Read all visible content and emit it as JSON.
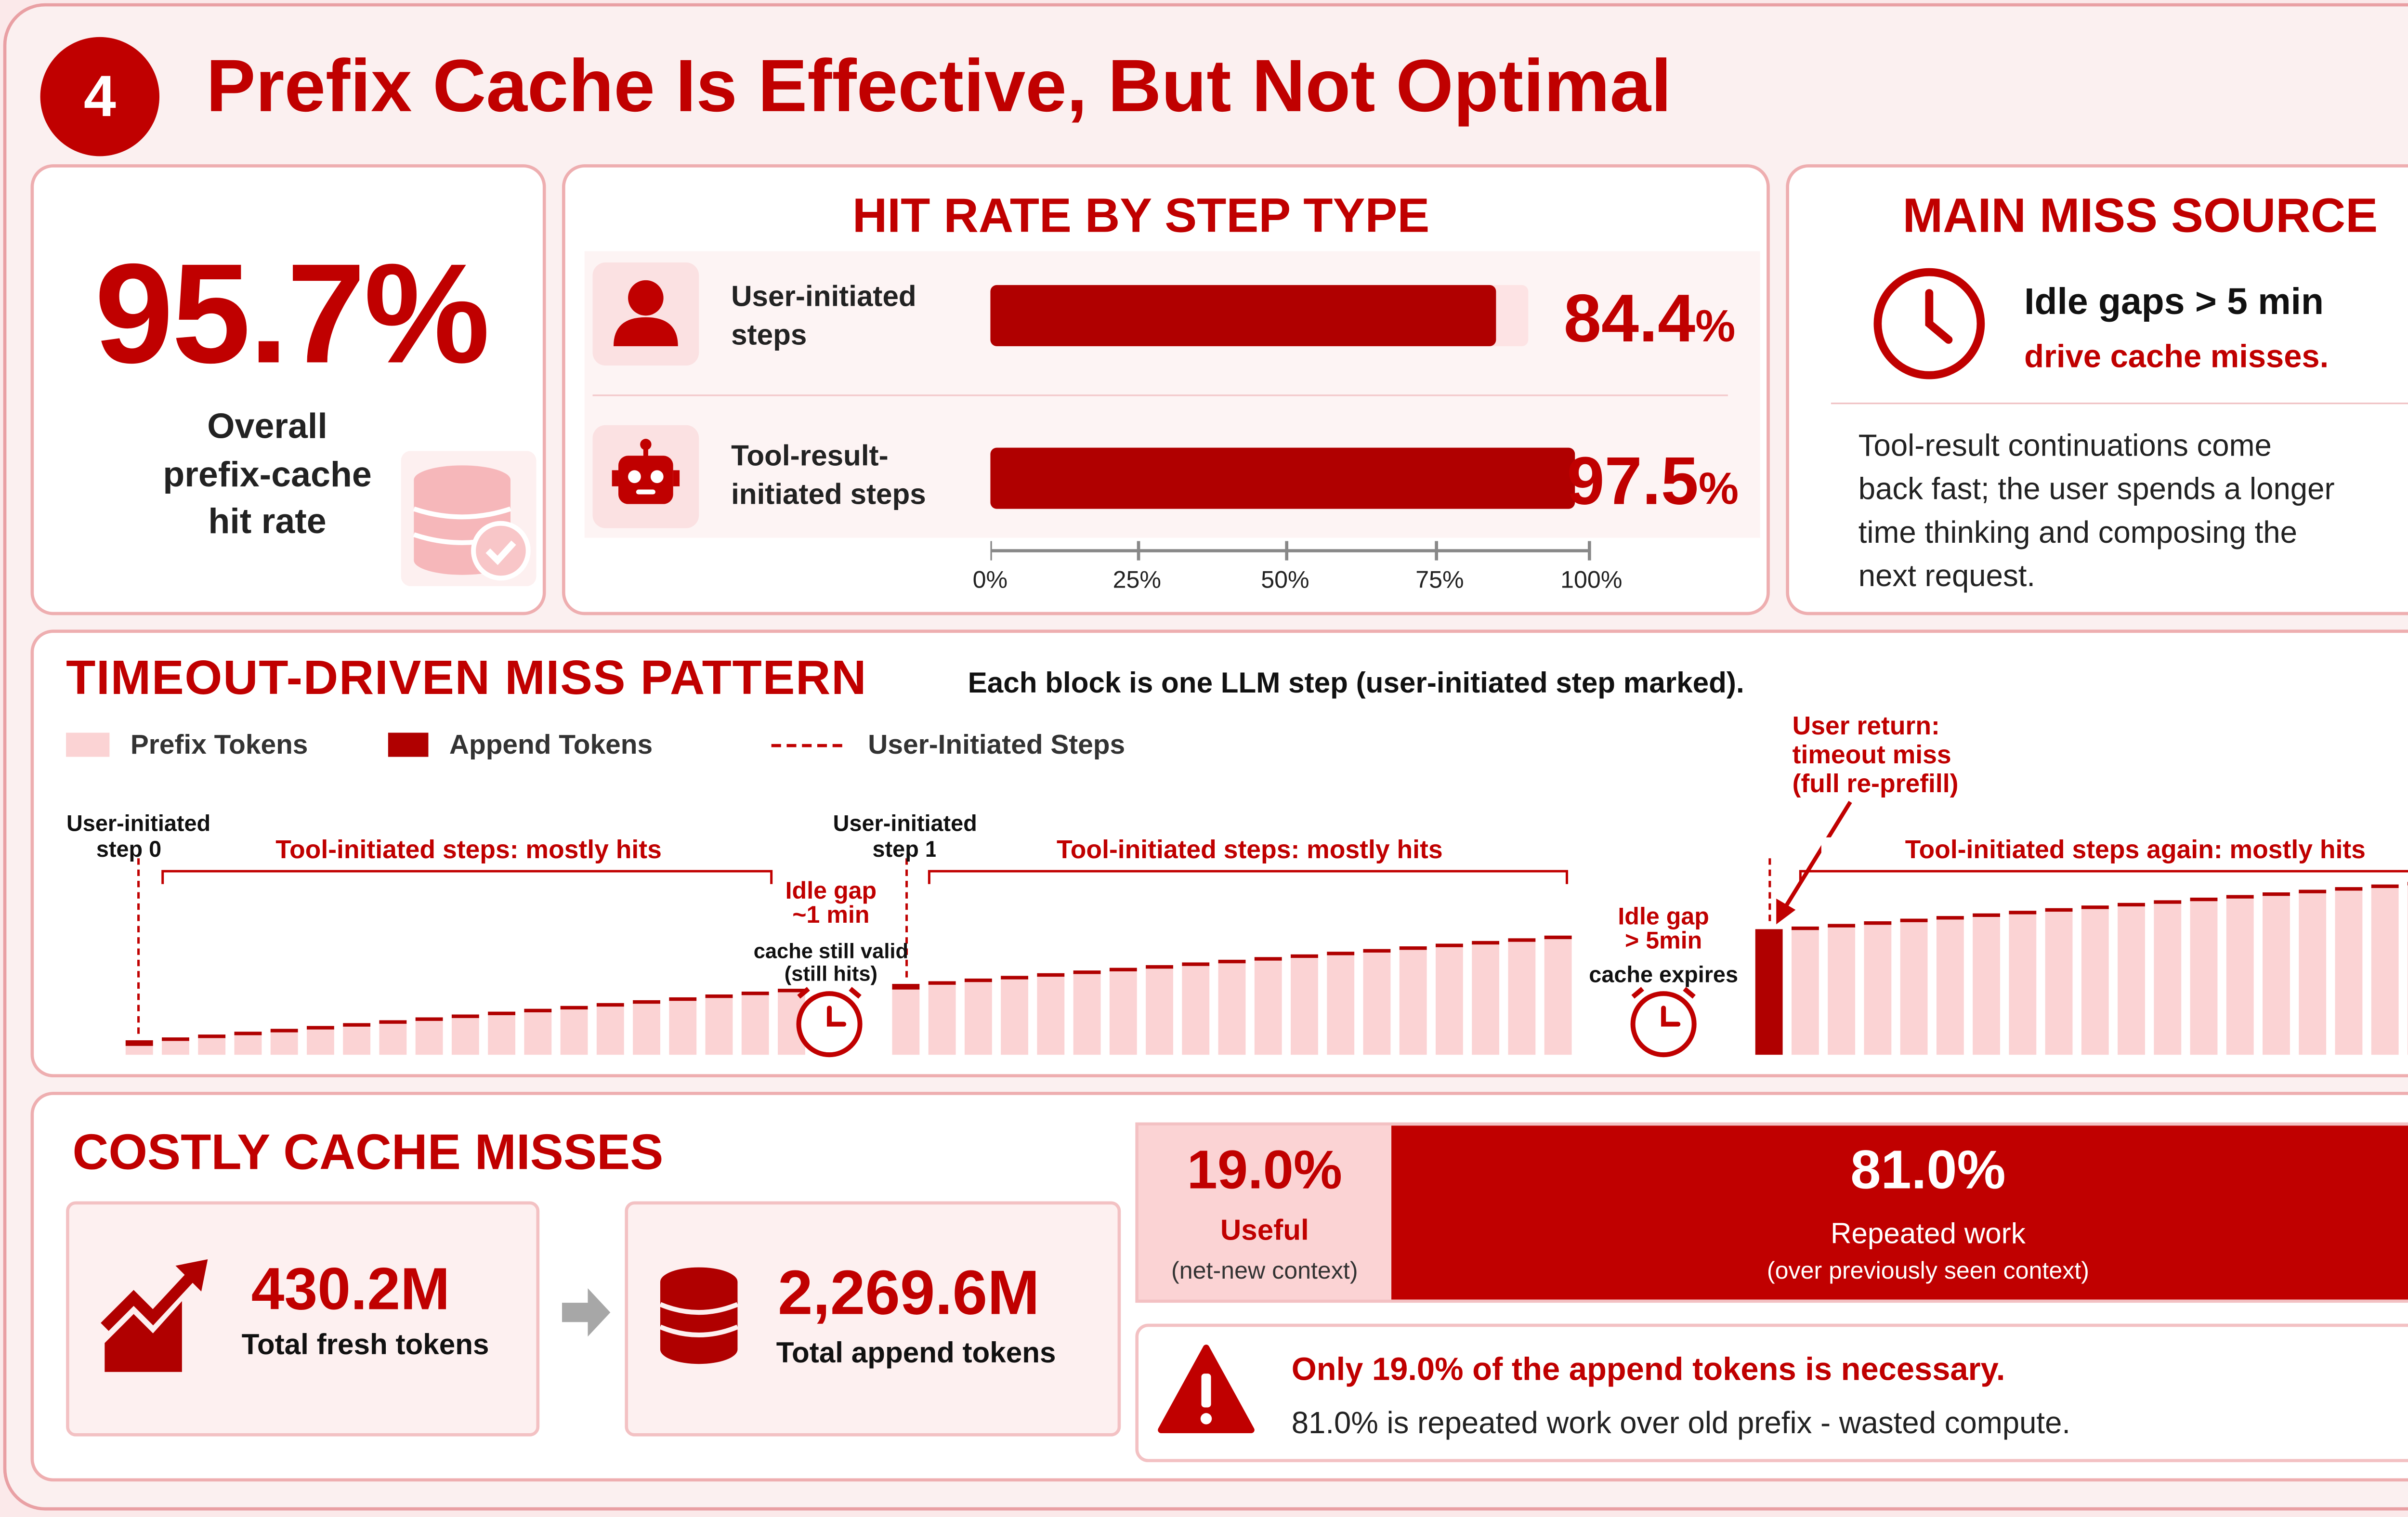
{
  "header": {
    "number": "4",
    "title": "Prefix Cache Is Effective, But Not Optimal"
  },
  "overall": {
    "value": "95.7%",
    "label_lines": [
      "Overall",
      "prefix-cache",
      "hit rate"
    ]
  },
  "hit_rate": {
    "title": "HIT RATE BY STEP TYPE",
    "rows": [
      {
        "label_lines": [
          "User-initiated",
          "steps"
        ],
        "value_num": "84.4",
        "value_pct": "%",
        "value": 84.4
      },
      {
        "label_lines": [
          "Tool-result-",
          "initiated steps"
        ],
        "value_num": "97.5",
        "value_pct": "%",
        "value": 97.5
      }
    ],
    "axis_ticks": [
      "0%",
      "25%",
      "50%",
      "75%",
      "100%"
    ]
  },
  "miss_source": {
    "title": "MAIN MISS SOURCE",
    "headline": "Idle gaps > 5 min",
    "subline": "drive cache misses.",
    "body_lines": [
      "Tool-result continuations come",
      "back fast; the user spends a longer",
      "time thinking and composing the",
      "next request."
    ]
  },
  "timeout": {
    "title": "TIMEOUT-DRIVEN MISS PATTERN",
    "subtitle": "Each block is one LLM step (user-initiated step marked).",
    "legend": {
      "prefix": "Prefix Tokens",
      "append": "Append Tokens",
      "user": "User-Initiated Steps"
    },
    "labels": {
      "user0_a": "User-initiated",
      "user0_b": "step 0",
      "user1_a": "User-initiated",
      "user1_b": "step 1",
      "tool1": "Tool-initiated steps: mostly hits",
      "tool2": "Tool-initiated steps: mostly hits",
      "tool3": "Tool-initiated steps again: mostly hits",
      "idle1_a": "Idle gap",
      "idle1_b": "~1 min",
      "valid_a": "cache still valid",
      "valid_b": "(still hits)",
      "idle2_a": "Idle gap",
      "idle2_b": "> 5min",
      "expires": "cache expires",
      "ret_a": "User return:",
      "ret_b": "timeout miss",
      "ret_c": "(full re-prefill)"
    }
  },
  "costly": {
    "title": "COSTLY CACHE MISSES",
    "fresh_value": "430.2M",
    "fresh_label": "Total fresh tokens",
    "append_value": "2,269.6M",
    "append_label": "Total append tokens",
    "useful_pct": "19.0%",
    "useful_label": "Useful",
    "useful_sub": "(net-new context)",
    "repeated_pct": "81.0%",
    "repeated_label": "Repeated work",
    "repeated_sub": "(over previously seen context)",
    "note_bold": "Only 19.0% of the append tokens is necessary.",
    "note_text": "81.0% is repeated work over old prefix - wasted compute."
  },
  "colors": {
    "accent": "#c00000",
    "light": "#fbd3d4",
    "border": "#eeaeb0"
  },
  "chart_data": [
    {
      "type": "bar",
      "title": "HIT RATE BY STEP TYPE",
      "categories": [
        "User-initiated steps",
        "Tool-result-initiated steps"
      ],
      "values": [
        84.4,
        97.5
      ],
      "xlim": [
        0,
        100
      ]
    },
    {
      "type": "bar",
      "title": "COSTLY CACHE MISSES",
      "categories": [
        "Useful",
        "Repeated work"
      ],
      "values": [
        19.0,
        81.0
      ]
    }
  ]
}
